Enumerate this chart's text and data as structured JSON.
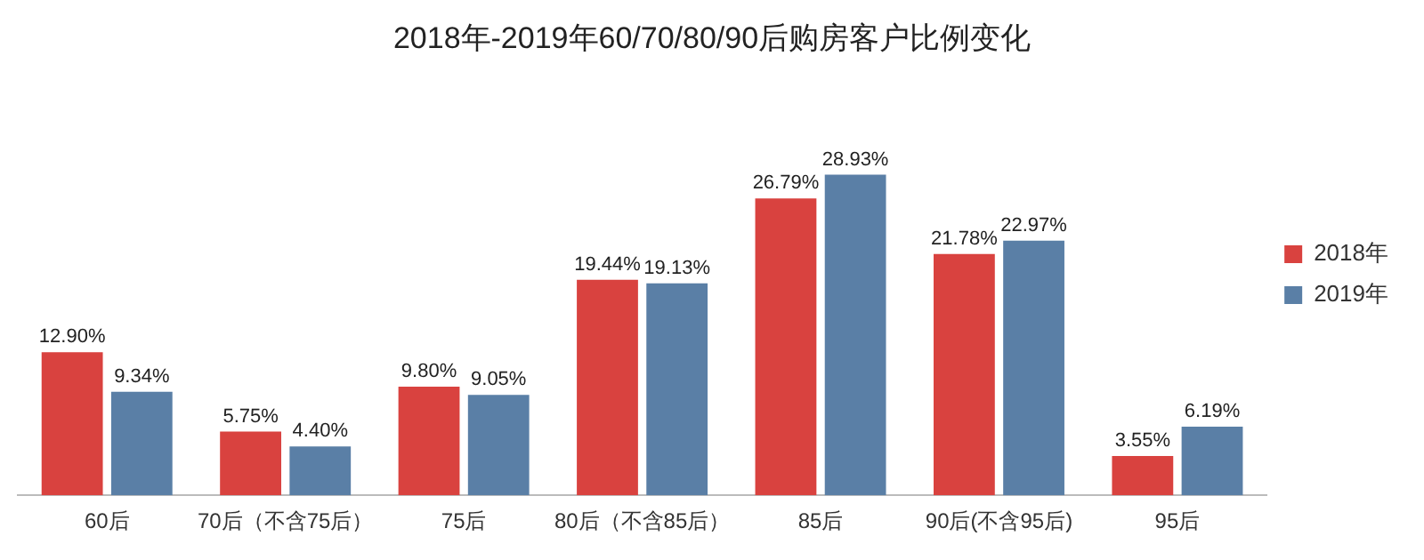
{
  "chart_data": {
    "type": "bar",
    "title": "2018年-2019年60/70/80/90后购房客户比例变化",
    "categories": [
      "60后",
      "70后（不含75后）",
      "75后",
      "80后（不含85后）",
      "85后",
      "90后(不含95后)",
      "95后"
    ],
    "series": [
      {
        "name": "2018年",
        "color": "#d9423f",
        "values": [
          12.9,
          5.75,
          9.8,
          19.44,
          26.79,
          21.78,
          3.55
        ],
        "value_labels": [
          "12.90%",
          "5.75%",
          "9.80%",
          "19.44%",
          "26.79%",
          "21.78%",
          "3.55%"
        ]
      },
      {
        "name": "2019年",
        "color": "#5a7fa6",
        "values": [
          9.34,
          4.4,
          9.05,
          19.13,
          28.93,
          22.97,
          6.19
        ],
        "value_labels": [
          "9.34%",
          "4.40%",
          "9.05%",
          "19.13%",
          "28.93%",
          "22.97%",
          "6.19%"
        ]
      }
    ],
    "legend": "right",
    "grid": false,
    "tick_labels": "x"
  }
}
